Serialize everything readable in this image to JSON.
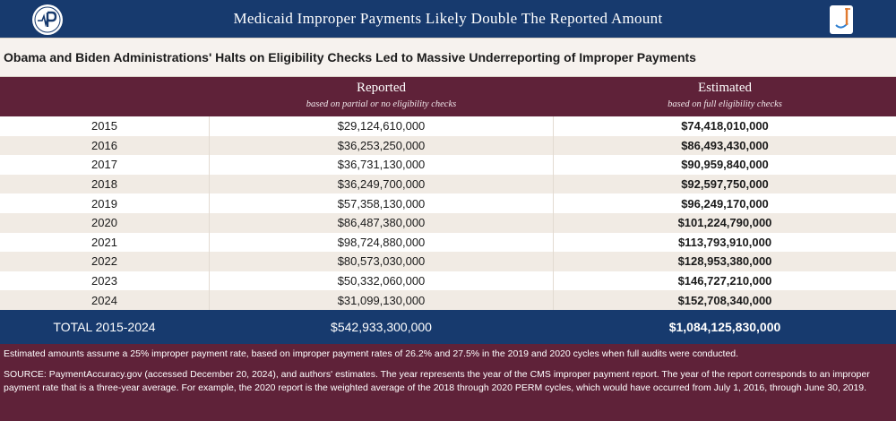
{
  "banner": {
    "title": "Medicaid Improper Payments Likely Double The Reported Amount",
    "logo_left_icon": "p-circle-logo-icon",
    "logo_right_icon": "open-door-logo-icon"
  },
  "subtitle": "Obama and Biden Administrations' Halts on Eligibility Checks Led to Massive Underreporting of Improper Payments",
  "columns": {
    "reported": {
      "label": "Reported",
      "sublabel": "based on partial or no eligibility checks"
    },
    "estimated": {
      "label": "Estimated",
      "sublabel": "based on full eligibility checks"
    }
  },
  "rows": [
    {
      "year": "2015",
      "reported": "$29,124,610,000",
      "estimated": "$74,418,010,000"
    },
    {
      "year": "2016",
      "reported": "$36,253,250,000",
      "estimated": "$86,493,430,000"
    },
    {
      "year": "2017",
      "reported": "$36,731,130,000",
      "estimated": "$90,959,840,000"
    },
    {
      "year": "2018",
      "reported": "$36,249,700,000",
      "estimated": "$92,597,750,000"
    },
    {
      "year": "2019",
      "reported": "$57,358,130,000",
      "estimated": "$96,249,170,000"
    },
    {
      "year": "2020",
      "reported": "$86,487,380,000",
      "estimated": "$101,224,790,000"
    },
    {
      "year": "2021",
      "reported": "$98,724,880,000",
      "estimated": "$113,793,910,000"
    },
    {
      "year": "2022",
      "reported": "$80,573,030,000",
      "estimated": "$128,953,380,000"
    },
    {
      "year": "2023",
      "reported": "$50,332,060,000",
      "estimated": "$146,727,210,000"
    },
    {
      "year": "2024",
      "reported": "$31,099,130,000",
      "estimated": "$152,708,340,000"
    }
  ],
  "total": {
    "label": "TOTAL 2015-2024",
    "reported": "$542,933,300,000",
    "estimated": "$1,084,125,830,000"
  },
  "footer": {
    "note": "Estimated amounts assume a 25% improper payment rate, based on improper payment rates of 26.2% and 27.5% in the 2019 and 2020 cycles when full audits were conducted.",
    "source": "SOURCE: PaymentAccuracy.gov (accessed December 20, 2024), and authors' estimates. The year represents the year of the CMS improper payment report. The year of the report corresponds to an improper payment rate that is a three-year average. For example, the 2020 report is the weighted average of the 2018 through 2020 PERM cycles, which would have occurred from July 1, 2016, through June 30, 2019."
  },
  "colors": {
    "navy": "#173a6e",
    "maroon": "#5f2239",
    "row_alt": "#f1ebe4"
  }
}
